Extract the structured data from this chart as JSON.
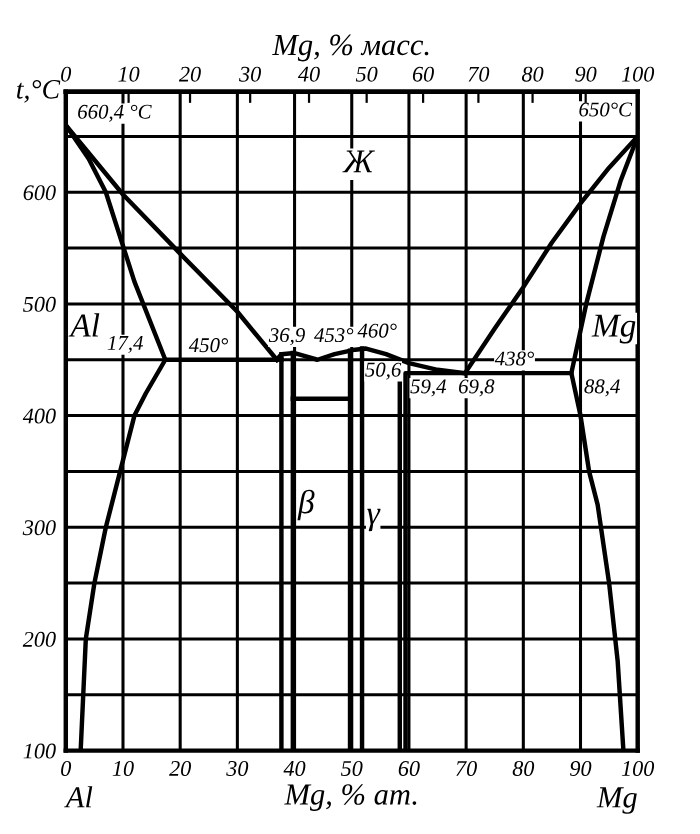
{
  "chart_data": {
    "type": "line",
    "ylabel": "t,°C",
    "xlabel": "Mg, % ат.",
    "x2label": "Mg, % масс.",
    "xlim": [
      0,
      100
    ],
    "xticks": [
      0,
      10,
      20,
      30,
      40,
      50,
      60,
      70,
      80,
      90,
      100
    ],
    "ylim": [
      100,
      690
    ],
    "yticks": [
      100,
      {
        "value": 150,
        "label": null
      },
      200,
      {
        "value": 250,
        "label": null
      },
      300,
      {
        "value": 350,
        "label": null
      },
      400,
      {
        "value": 450,
        "label": null
      },
      500,
      {
        "value": 550,
        "label": null
      },
      600,
      {
        "value": 650,
        "label": null
      }
    ],
    "x2lim": [
      0,
      100
    ],
    "x2ticks": [
      0,
      10,
      20,
      30,
      40,
      50,
      60,
      70,
      80,
      90,
      100
    ],
    "grid": true,
    "line_style": "solid",
    "marker": "none",
    "series": [
      {
        "color": "#000000",
        "x": [
          0,
          10,
          20,
          30,
          36.9
        ],
        "values": [
          660,
          598,
          545,
          493,
          450
        ]
      },
      {
        "color": "#000000",
        "x": [
          0,
          4,
          7,
          12,
          17.4,
          14,
          12,
          9.5,
          7,
          5,
          3.5,
          2.6
        ],
        "values": [
          660,
          630,
          600,
          520,
          450,
          420,
          400,
          350,
          300,
          250,
          200,
          100
        ]
      },
      {
        "color": "#000000",
        "x": [
          17.4,
          37.7
        ],
        "values": [
          450,
          450
        ]
      },
      {
        "color": "#000000",
        "x": [
          37.7,
          37.7
        ],
        "values": [
          455,
          100
        ]
      },
      {
        "color": "#000000",
        "x": [
          39.7,
          39.7
        ],
        "values": [
          456,
          100
        ]
      },
      {
        "color": "#000000",
        "x": [
          36.9,
          37.7,
          40,
          42,
          44,
          47,
          50.6,
          52.5,
          56,
          60,
          65,
          69.8
        ],
        "values": [
          450,
          455,
          456,
          453,
          450,
          455,
          459,
          460,
          455,
          447,
          441,
          438
        ]
      },
      {
        "color": "#000000",
        "x": [
          39.7,
          49.7
        ],
        "values": [
          415,
          415
        ]
      },
      {
        "color": "#000000",
        "x": [
          49.7,
          49.7
        ],
        "values": [
          458,
          100
        ]
      },
      {
        "color": "#000000",
        "x": [
          51.8,
          51.8
        ],
        "values": [
          460,
          100
        ]
      },
      {
        "color": "#000000",
        "x": [
          58.4,
          58.4
        ],
        "values": [
          442,
          100
        ]
      },
      {
        "color": "#000000",
        "x": [
          59.4,
          59.4,
          88.4
        ],
        "values": [
          100,
          438,
          438
        ]
      },
      {
        "color": "#000000",
        "x": [
          69.8,
          75,
          80,
          85,
          90,
          95,
          100
        ],
        "values": [
          438,
          478,
          515,
          555,
          590,
          622,
          650
        ]
      },
      {
        "color": "#000000",
        "x": [
          100,
          97,
          94,
          91,
          88.4,
          90,
          91.5,
          93,
          95,
          96.5,
          97.5
        ],
        "values": [
          650,
          610,
          560,
          500,
          438,
          400,
          350,
          320,
          250,
          180,
          100
        ]
      }
    ],
    "annotations": [
      {
        "text": "660,4 °C",
        "x": 0,
        "y": 660
      },
      {
        "text": "650°C",
        "x": 100,
        "y": 650
      },
      {
        "text": "17,4",
        "x": 17.4,
        "y": 450
      },
      {
        "text": "450°",
        "x": 20,
        "y": 450
      },
      {
        "text": "36,9",
        "x": 36.9,
        "y": 450
      },
      {
        "text": "453°",
        "x": 40,
        "y": 456
      },
      {
        "text": "460°",
        "x": 52.5,
        "y": 460
      },
      {
        "text": "50,6",
        "x": 50.6,
        "y": 459
      },
      {
        "text": "59,4",
        "x": 59.4,
        "y": 438
      },
      {
        "text": "69,8",
        "x": 69.8,
        "y": 438
      },
      {
        "text": "438°",
        "x": 78,
        "y": 438
      },
      {
        "text": "88,4",
        "x": 88.4,
        "y": 438
      },
      "Ж",
      "Al",
      "Mg",
      "β",
      "γ",
      "Al",
      "Mg"
    ]
  }
}
